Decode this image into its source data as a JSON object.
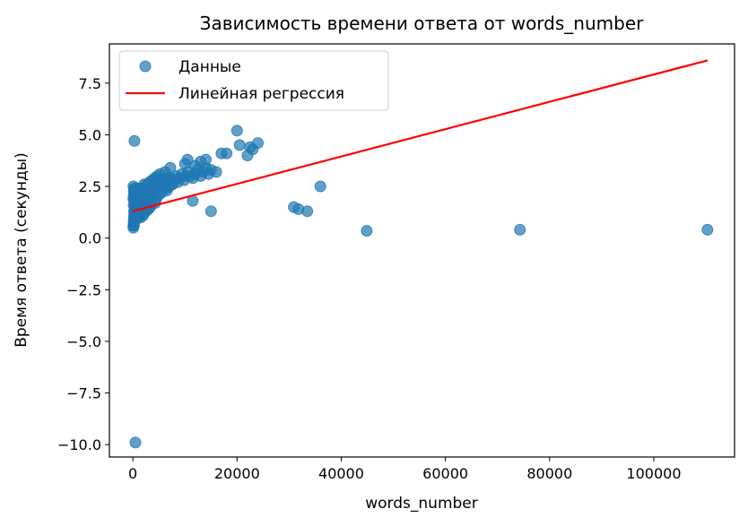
{
  "chart_data": {
    "type": "scatter",
    "title": "Зависимость времени ответа от words_number",
    "xlabel": "words_number",
    "ylabel": "Время ответа (секунды)",
    "xlim": [
      -4500,
      115500
    ],
    "ylim": [
      -10.6,
      9.4
    ],
    "xticks": [
      0,
      20000,
      40000,
      60000,
      80000,
      100000
    ],
    "xtick_labels": [
      "0",
      "20000",
      "40000",
      "60000",
      "80000",
      "100000"
    ],
    "yticks": [
      -10.0,
      -7.5,
      -5.0,
      -2.5,
      0.0,
      2.5,
      5.0,
      7.5
    ],
    "ytick_labels": [
      "−10.0",
      "−7.5",
      "−5.0",
      "−2.5",
      "0.0",
      "2.5",
      "5.0",
      "7.5"
    ],
    "grid": false,
    "legend_position": "top-left",
    "series": [
      {
        "name": "Данные",
        "kind": "scatter",
        "color": "#1f77b4",
        "x": [
          100,
          120,
          150,
          180,
          200,
          220,
          250,
          280,
          300,
          350,
          400,
          450,
          500,
          550,
          600,
          700,
          800,
          900,
          1000,
          1100,
          1200,
          1300,
          1400,
          1500,
          1600,
          1700,
          1800,
          1900,
          2000,
          2100,
          2200,
          2300,
          2400,
          2500,
          2600,
          2700,
          2800,
          2900,
          3000,
          3100,
          3200,
          3300,
          3400,
          3500,
          3600,
          3800,
          4000,
          4200,
          4400,
          4600,
          4800,
          5000,
          5200,
          5400,
          5600,
          5800,
          6000,
          6200,
          6400,
          6600,
          6800,
          7000,
          7300,
          7600,
          8000,
          8300,
          8600,
          9000,
          9400,
          9800,
          10200,
          10600,
          11000,
          11500,
          12000,
          12500,
          13000,
          13500,
          14000,
          14500,
          15000,
          16000,
          17000,
          18000,
          200,
          300,
          400,
          500,
          250,
          350,
          450,
          150,
          180,
          600,
          700,
          800,
          120,
          1000,
          1500,
          2000,
          2500,
          3000,
          3500,
          4000,
          4500,
          5000,
          5500,
          6000,
          6500,
          7000,
          7500,
          600,
          900,
          1300,
          1800,
          2300,
          3300,
          4300,
          100,
          200,
          300,
          500,
          800,
          1200,
          2200,
          3200,
          4200,
          5200,
          6200,
          7200,
          150,
          400,
          700,
          1100,
          1700,
          2700,
          3700,
          4700,
          5700,
          6700,
          300,
          10000,
          10500,
          12000,
          13000,
          14000,
          11500,
          15000,
          20000,
          20500,
          22000,
          23000,
          24000,
          22500,
          30900,
          31800,
          33500,
          36000,
          44900,
          74300,
          110300,
          300,
          500,
          280
        ],
        "y": [
          0.5,
          0.6,
          0.7,
          0.8,
          0.9,
          1.0,
          1.1,
          1.2,
          1.3,
          1.4,
          1.5,
          1.6,
          1.7,
          1.8,
          1.9,
          2.0,
          2.1,
          2.2,
          1.0,
          1.1,
          1.2,
          1.3,
          1.4,
          1.5,
          1.6,
          1.7,
          1.8,
          1.9,
          2.0,
          1.4,
          1.6,
          1.8,
          2.0,
          2.2,
          1.5,
          1.7,
          1.9,
          2.1,
          2.3,
          1.6,
          1.8,
          2.0,
          2.2,
          2.4,
          1.7,
          2.0,
          2.2,
          2.4,
          2.6,
          2.3,
          2.5,
          2.7,
          2.4,
          2.6,
          2.8,
          2.5,
          2.7,
          2.9,
          2.4,
          2.6,
          2.8,
          2.7,
          2.9,
          2.6,
          2.8,
          3.0,
          2.7,
          2.9,
          3.1,
          2.8,
          3.0,
          3.2,
          3.0,
          2.9,
          3.1,
          3.3,
          3.0,
          3.2,
          3.4,
          3.1,
          3.3,
          3.2,
          4.1,
          4.1,
          0.6,
          0.8,
          0.9,
          1.1,
          1.3,
          1.5,
          1.7,
          2.0,
          2.3,
          2.4,
          2.1,
          1.8,
          2.5,
          1.2,
          1.0,
          1.1,
          1.3,
          1.4,
          1.6,
          1.8,
          1.9,
          2.1,
          2.2,
          2.4,
          2.3,
          2.5,
          2.6,
          0.9,
          1.0,
          1.1,
          1.2,
          1.3,
          1.5,
          1.7,
          1.9,
          2.1,
          2.3,
          2.0,
          1.9,
          2.4,
          2.6,
          2.7,
          2.9,
          3.1,
          3.2,
          3.4,
          1.6,
          1.8,
          2.0,
          2.2,
          2.4,
          2.6,
          2.8,
          3.0,
          2.7,
          2.5,
          1.8,
          3.6,
          3.8,
          3.5,
          3.7,
          3.8,
          1.8,
          1.3,
          5.2,
          4.5,
          4.0,
          4.3,
          4.6,
          4.4,
          1.5,
          1.4,
          1.3,
          2.5,
          0.35,
          0.4,
          0.4,
          4.7,
          -9.9,
          2.4
        ],
        "note": ""
      },
      {
        "name": "Линейная регрессия",
        "kind": "line",
        "color": "#ff0000",
        "x": [
          0,
          110300
        ],
        "y": [
          1.3,
          8.6
        ]
      }
    ]
  },
  "legend": {
    "scatter_label": "Данные",
    "line_label": "Линейная регрессия"
  }
}
